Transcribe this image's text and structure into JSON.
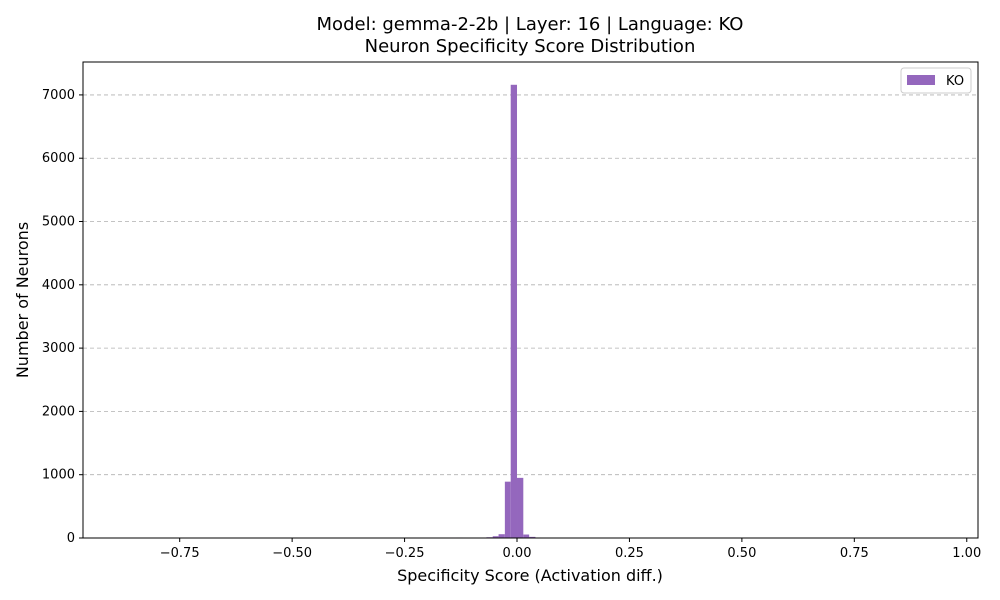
{
  "chart_data": {
    "type": "bar",
    "title_line1": "Model: gemma-2-2b | Layer: 16 | Language: KO",
    "title_line2": "Neuron Specificity Score Distribution",
    "xlabel": "Specificity Score (Activation diff.)",
    "ylabel": "Number of Neurons",
    "xlim": [
      -0.965,
      1.025
    ],
    "ylim": [
      0,
      7520
    ],
    "grid": "y-dashed",
    "color": "#9467bd",
    "legend": {
      "label": "KO",
      "placement": "top-right"
    },
    "xticks": [
      {
        "value": -0.75,
        "label": "−0.75"
      },
      {
        "value": -0.5,
        "label": "−0.50"
      },
      {
        "value": -0.25,
        "label": "−0.25"
      },
      {
        "value": 0.0,
        "label": "0.00"
      },
      {
        "value": 0.25,
        "label": "0.25"
      },
      {
        "value": 0.5,
        "label": "0.50"
      },
      {
        "value": 0.75,
        "label": "0.75"
      },
      {
        "value": 1.0,
        "label": "1.00"
      }
    ],
    "yticks": [
      {
        "value": 0,
        "label": "0"
      },
      {
        "value": 1000,
        "label": "1000"
      },
      {
        "value": 2000,
        "label": "2000"
      },
      {
        "value": 3000,
        "label": "3000"
      },
      {
        "value": 4000,
        "label": "4000"
      },
      {
        "value": 5000,
        "label": "5000"
      },
      {
        "value": 6000,
        "label": "6000"
      },
      {
        "value": 7000,
        "label": "7000"
      }
    ],
    "bins": [
      {
        "x0": -0.135,
        "x1": -0.121,
        "count": 8
      },
      {
        "x0": -0.081,
        "x1": -0.068,
        "count": 5
      },
      {
        "x0": -0.068,
        "x1": -0.054,
        "count": 12
      },
      {
        "x0": -0.054,
        "x1": -0.041,
        "count": 28
      },
      {
        "x0": -0.041,
        "x1": -0.027,
        "count": 60
      },
      {
        "x0": -0.027,
        "x1": -0.014,
        "count": 890
      },
      {
        "x0": -0.014,
        "x1": 0.0,
        "count": 7160
      },
      {
        "x0": 0.0,
        "x1": 0.014,
        "count": 950
      },
      {
        "x0": 0.014,
        "x1": 0.027,
        "count": 55
      },
      {
        "x0": 0.027,
        "x1": 0.041,
        "count": 18
      },
      {
        "x0": 0.041,
        "x1": 0.054,
        "count": 8
      },
      {
        "x0": 0.054,
        "x1": 0.068,
        "count": 3
      }
    ]
  }
}
